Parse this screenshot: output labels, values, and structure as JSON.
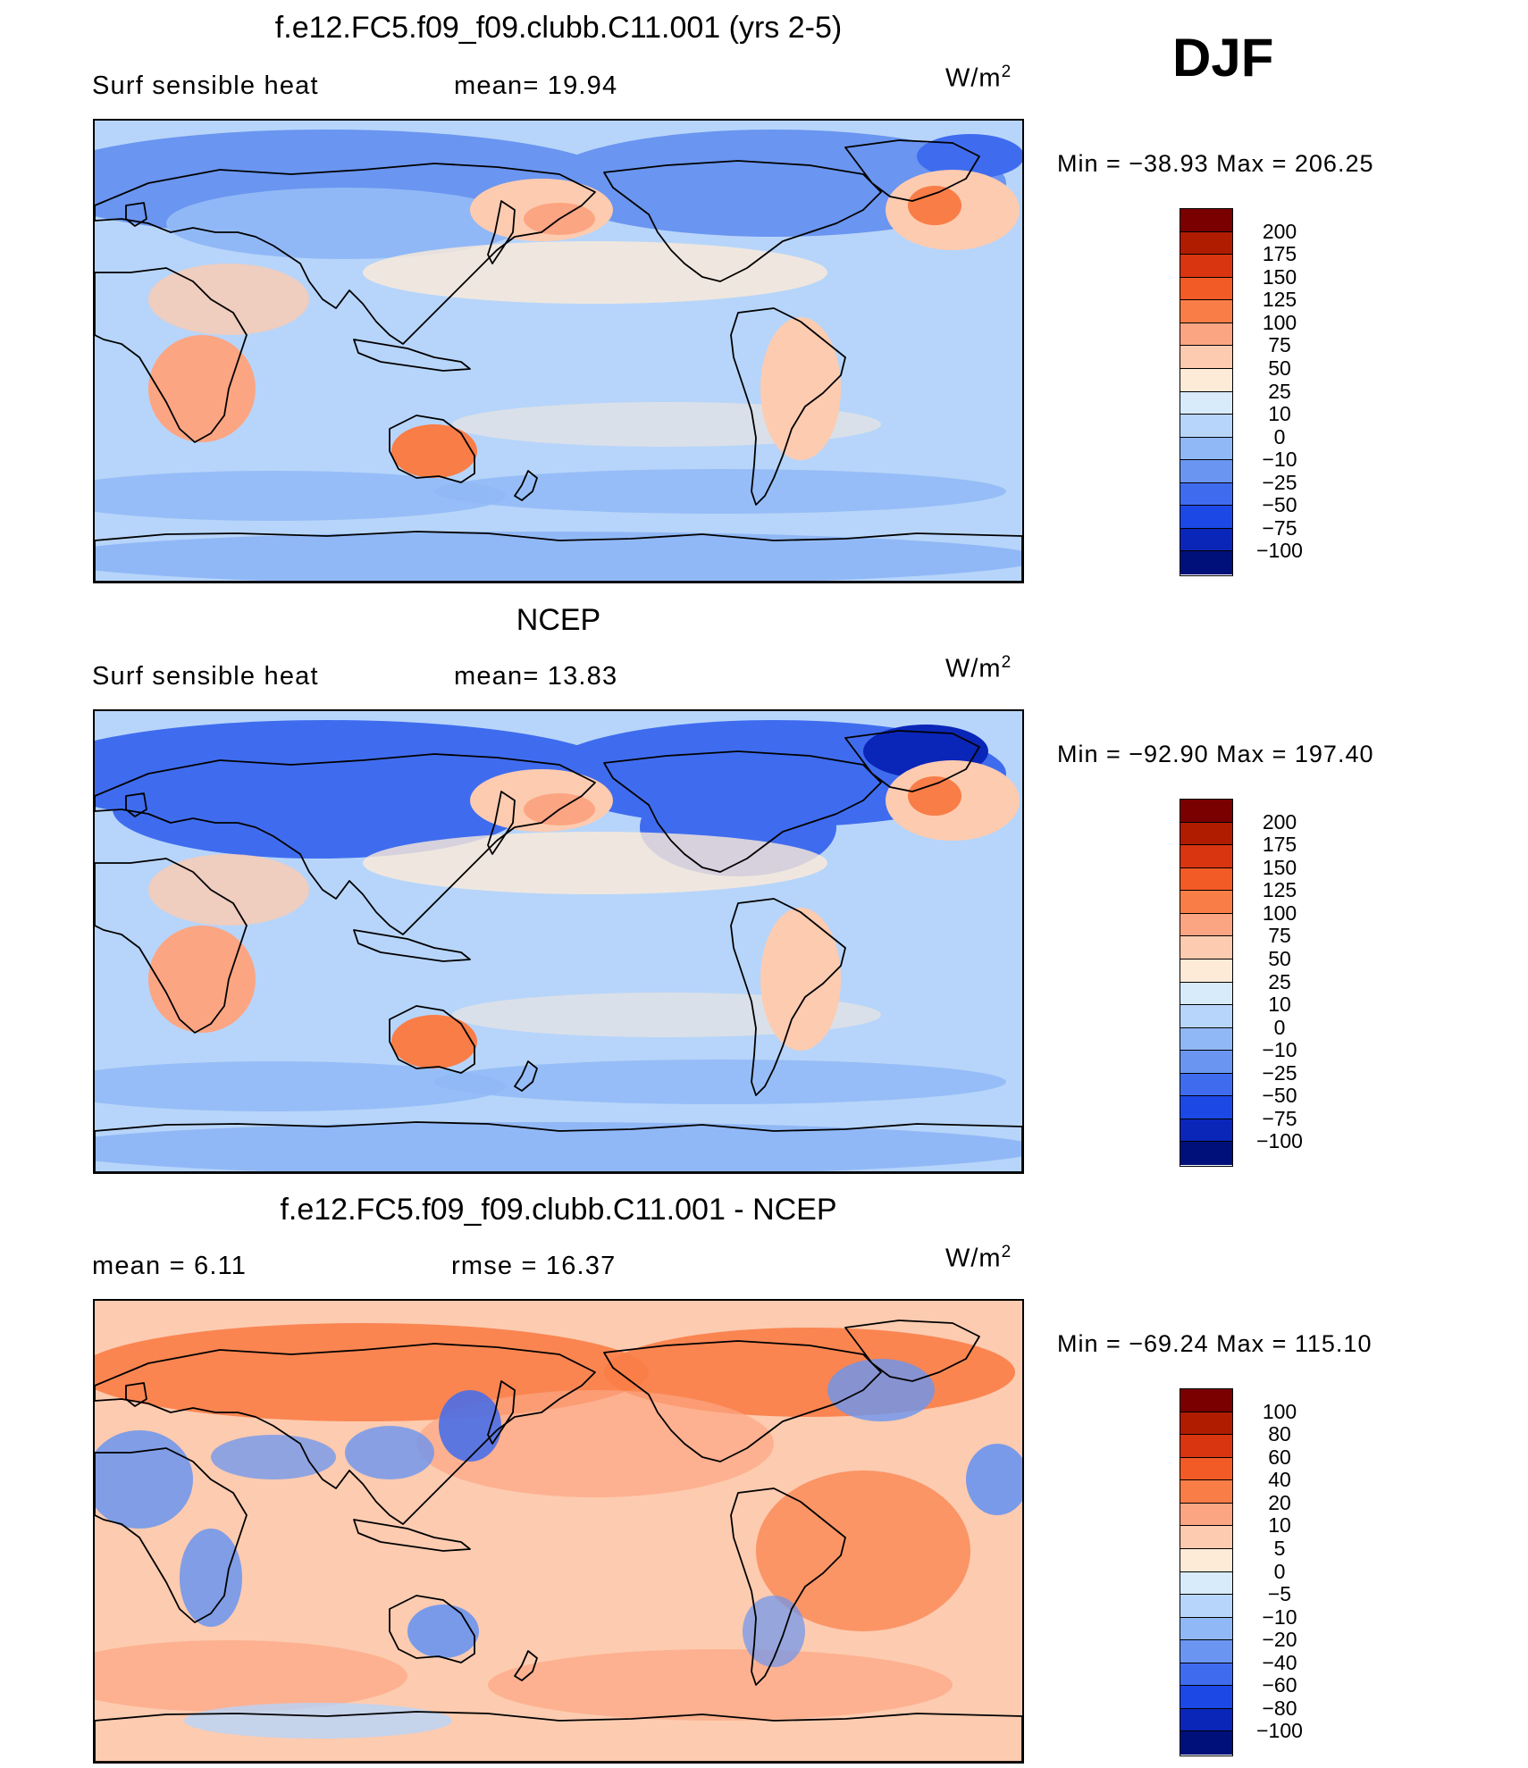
{
  "season": "DJF",
  "panels": [
    {
      "title": "f.e12.FC5.f09_f09.clubb.C11.001 (yrs 2-5)",
      "left_text": "Surf  sensible  heat",
      "mid_text": "mean=   19.94",
      "units_base": "W/m",
      "units_sup": "2",
      "minmax": "Min  =  −38.93  Max  =  206.25",
      "colorbar_labels": [
        "200",
        "175",
        "150",
        "125",
        "100",
        "75",
        "50",
        "25",
        "10",
        "0",
        "−10",
        "−25",
        "−50",
        "−75",
        "−100"
      ],
      "mode": "model"
    },
    {
      "title": "NCEP",
      "left_text": "Surf  sensible  heat",
      "mid_text": "mean=   13.83",
      "units_base": "W/m",
      "units_sup": "2",
      "minmax": "Min  =  −92.90  Max  =  197.40",
      "colorbar_labels": [
        "200",
        "175",
        "150",
        "125",
        "100",
        "75",
        "50",
        "25",
        "10",
        "0",
        "−10",
        "−25",
        "−50",
        "−75",
        "−100"
      ],
      "mode": "obs"
    },
    {
      "title": "f.e12.FC5.f09_f09.clubb.C11.001 - NCEP",
      "left_text": "mean  =      6.11",
      "mid_text": "rmse  =     16.37",
      "units_base": "W/m",
      "units_sup": "2",
      "minmax": "Min  =  −69.24  Max  =  115.10",
      "colorbar_labels": [
        "100",
        "80",
        "60",
        "40",
        "20",
        "10",
        "5",
        "0",
        "−5",
        "−10",
        "−20",
        "−40",
        "−60",
        "−80",
        "−100"
      ],
      "mode": "diff"
    }
  ],
  "colorbar_colors": [
    "#7a0000",
    "#b01c00",
    "#d83510",
    "#f25a26",
    "#f97d47",
    "#fca583",
    "#fdcbb0",
    "#fdebd8",
    "#d8ebfb",
    "#b7d5fa",
    "#91b8f6",
    "#6a95f0",
    "#3f6cee",
    "#1c48e6",
    "#0a26b8",
    "#00107a"
  ],
  "chart_data": [
    {
      "type": "heatmap",
      "title": "f.e12.FC5.f09_f09.clubb.C11.001 (yrs 2-5)",
      "variable": "Surf sensible heat",
      "units": "W/m2",
      "season": "DJF",
      "mean": 19.94,
      "min": -38.93,
      "max": 206.25,
      "contour_levels": [
        -100,
        -75,
        -50,
        -25,
        -10,
        0,
        10,
        25,
        50,
        75,
        100,
        125,
        150,
        175,
        200
      ]
    },
    {
      "type": "heatmap",
      "title": "NCEP",
      "variable": "Surf sensible heat",
      "units": "W/m2",
      "season": "DJF",
      "mean": 13.83,
      "min": -92.9,
      "max": 197.4,
      "contour_levels": [
        -100,
        -75,
        -50,
        -25,
        -10,
        0,
        10,
        25,
        50,
        75,
        100,
        125,
        150,
        175,
        200
      ]
    },
    {
      "type": "heatmap",
      "title": "f.e12.FC5.f09_f09.clubb.C11.001 - NCEP",
      "units": "W/m2",
      "season": "DJF",
      "mean": 6.11,
      "rmse": 16.37,
      "min": -69.24,
      "max": 115.1,
      "contour_levels": [
        -100,
        -80,
        -60,
        -40,
        -20,
        -10,
        -5,
        0,
        5,
        10,
        20,
        40,
        60,
        80,
        100
      ]
    }
  ]
}
